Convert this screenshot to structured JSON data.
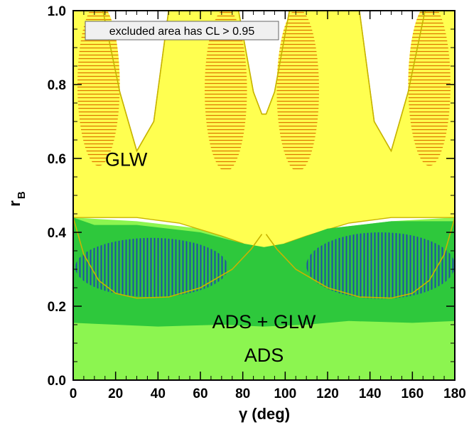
{
  "chart_data": {
    "type": "area",
    "title": "",
    "xlabel": "γ (deg)",
    "ylabel": "r",
    "ylabel_subscript": "B",
    "xlim": [
      0,
      180
    ],
    "ylim": [
      0.0,
      1.0
    ],
    "x_ticks": [
      0,
      20,
      40,
      60,
      80,
      100,
      120,
      140,
      160,
      180
    ],
    "y_ticks": [
      0.0,
      0.2,
      0.4,
      0.6,
      0.8,
      1.0
    ],
    "x_tick_labels": [
      "0",
      "20",
      "40",
      "60",
      "80",
      "100",
      "120",
      "140",
      "160",
      "180"
    ],
    "y_tick_labels": [
      "0.0",
      "0.2",
      "0.4",
      "0.6",
      "0.8",
      "1.0"
    ],
    "legend_text": "excluded area has CL > 0.95",
    "legend_position": "top-left",
    "colors": {
      "glw": "#ffff50",
      "glw_edge": "#c8b400",
      "ads": "#8cf550",
      "combined": "#2ec83c",
      "combined_inner": "#1e4ea6",
      "hatch_glw": "#e07800"
    },
    "regions": [
      {
        "name": "GLW",
        "label_at": [
          25,
          0.58
        ],
        "outline": [
          [
            0,
            1.0
          ],
          [
            14,
            1.0
          ],
          [
            22,
            0.78
          ],
          [
            30,
            0.62
          ],
          [
            38,
            0.7
          ],
          [
            45,
            1.0
          ],
          [
            78,
            1.0
          ],
          [
            85,
            0.78
          ],
          [
            89,
            0.72
          ],
          [
            91,
            0.72
          ],
          [
            95,
            0.78
          ],
          [
            102,
            1.0
          ],
          [
            135,
            1.0
          ],
          [
            142,
            0.7
          ],
          [
            150,
            0.62
          ],
          [
            158,
            0.78
          ],
          [
            166,
            1.0
          ],
          [
            180,
            1.0
          ],
          [
            180,
            0.44
          ],
          [
            150,
            0.44
          ],
          [
            130,
            0.425
          ],
          [
            110,
            0.39
          ],
          [
            100,
            0.37
          ],
          [
            94,
            0.35
          ],
          [
            91,
            0.32
          ],
          [
            86,
            0.35
          ],
          [
            80,
            0.37
          ],
          [
            70,
            0.39
          ],
          [
            50,
            0.425
          ],
          [
            30,
            0.44
          ],
          [
            0,
            0.44
          ]
        ]
      },
      {
        "name": "ADS",
        "label_at": [
          90,
          0.05
        ],
        "outline": [
          [
            0,
            0.0
          ],
          [
            180,
            0.0
          ],
          [
            180,
            0.44
          ],
          [
            150,
            0.43
          ],
          [
            120,
            0.41
          ],
          [
            100,
            0.385
          ],
          [
            90,
            0.38
          ],
          [
            80,
            0.385
          ],
          [
            60,
            0.41
          ],
          [
            30,
            0.43
          ],
          [
            0,
            0.44
          ]
        ]
      },
      {
        "name": "ADS + GLW",
        "label_at": [
          90,
          0.14
        ],
        "outline": [
          [
            0,
            0.44
          ],
          [
            10,
            0.42
          ],
          [
            30,
            0.42
          ],
          [
            60,
            0.4
          ],
          [
            80,
            0.37
          ],
          [
            90,
            0.36
          ],
          [
            100,
            0.37
          ],
          [
            120,
            0.41
          ],
          [
            150,
            0.43
          ],
          [
            180,
            0.43
          ],
          [
            180,
            0.16
          ],
          [
            160,
            0.155
          ],
          [
            130,
            0.16
          ],
          [
            110,
            0.15
          ],
          [
            90,
            0.145
          ],
          [
            70,
            0.15
          ],
          [
            40,
            0.145
          ],
          [
            20,
            0.15
          ],
          [
            0,
            0.155
          ]
        ]
      }
    ],
    "hatched_regions": [
      {
        "name": "GLW-core-1",
        "center": [
          12,
          0.8
        ],
        "half_width": 10,
        "half_height": 0.22
      },
      {
        "name": "GLW-core-2",
        "center": [
          72,
          0.785
        ],
        "half_width": 10,
        "half_height": 0.22
      },
      {
        "name": "GLW-core-3",
        "center": [
          106,
          0.785
        ],
        "half_width": 10,
        "half_height": 0.22
      },
      {
        "name": "GLW-core-4",
        "center": [
          168,
          0.8
        ],
        "half_width": 10,
        "half_height": 0.22
      },
      {
        "name": "ADS+GLW-core-1",
        "center": [
          37,
          0.305
        ],
        "half_width": 36,
        "half_height": 0.08
      },
      {
        "name": "ADS+GLW-core-2",
        "center": [
          145,
          0.31
        ],
        "half_width": 35,
        "half_height": 0.09
      }
    ],
    "contour_lines": [
      {
        "name": "arc-left",
        "points": [
          [
            0,
            0.44
          ],
          [
            5,
            0.34
          ],
          [
            12,
            0.27
          ],
          [
            20,
            0.235
          ],
          [
            30,
            0.222
          ],
          [
            45,
            0.225
          ],
          [
            60,
            0.25
          ],
          [
            75,
            0.3
          ],
          [
            84,
            0.355
          ],
          [
            89,
            0.395
          ]
        ]
      },
      {
        "name": "arc-right",
        "points": [
          [
            91,
            0.395
          ],
          [
            96,
            0.355
          ],
          [
            105,
            0.3
          ],
          [
            120,
            0.25
          ],
          [
            135,
            0.225
          ],
          [
            150,
            0.222
          ],
          [
            160,
            0.235
          ],
          [
            168,
            0.27
          ],
          [
            175,
            0.34
          ],
          [
            180,
            0.44
          ]
        ]
      },
      {
        "name": "glw-edge",
        "points": [
          [
            14,
            1.0
          ],
          [
            22,
            0.78
          ],
          [
            30,
            0.62
          ],
          [
            38,
            0.7
          ],
          [
            45,
            1.0
          ]
        ]
      },
      {
        "name": "glw-edge-2",
        "points": [
          [
            78,
            1.0
          ],
          [
            85,
            0.78
          ],
          [
            89,
            0.72
          ],
          [
            91,
            0.72
          ],
          [
            95,
            0.78
          ],
          [
            102,
            1.0
          ]
        ]
      },
      {
        "name": "glw-edge-3",
        "points": [
          [
            135,
            1.0
          ],
          [
            142,
            0.7
          ],
          [
            150,
            0.62
          ],
          [
            158,
            0.78
          ],
          [
            166,
            1.0
          ]
        ]
      }
    ]
  }
}
